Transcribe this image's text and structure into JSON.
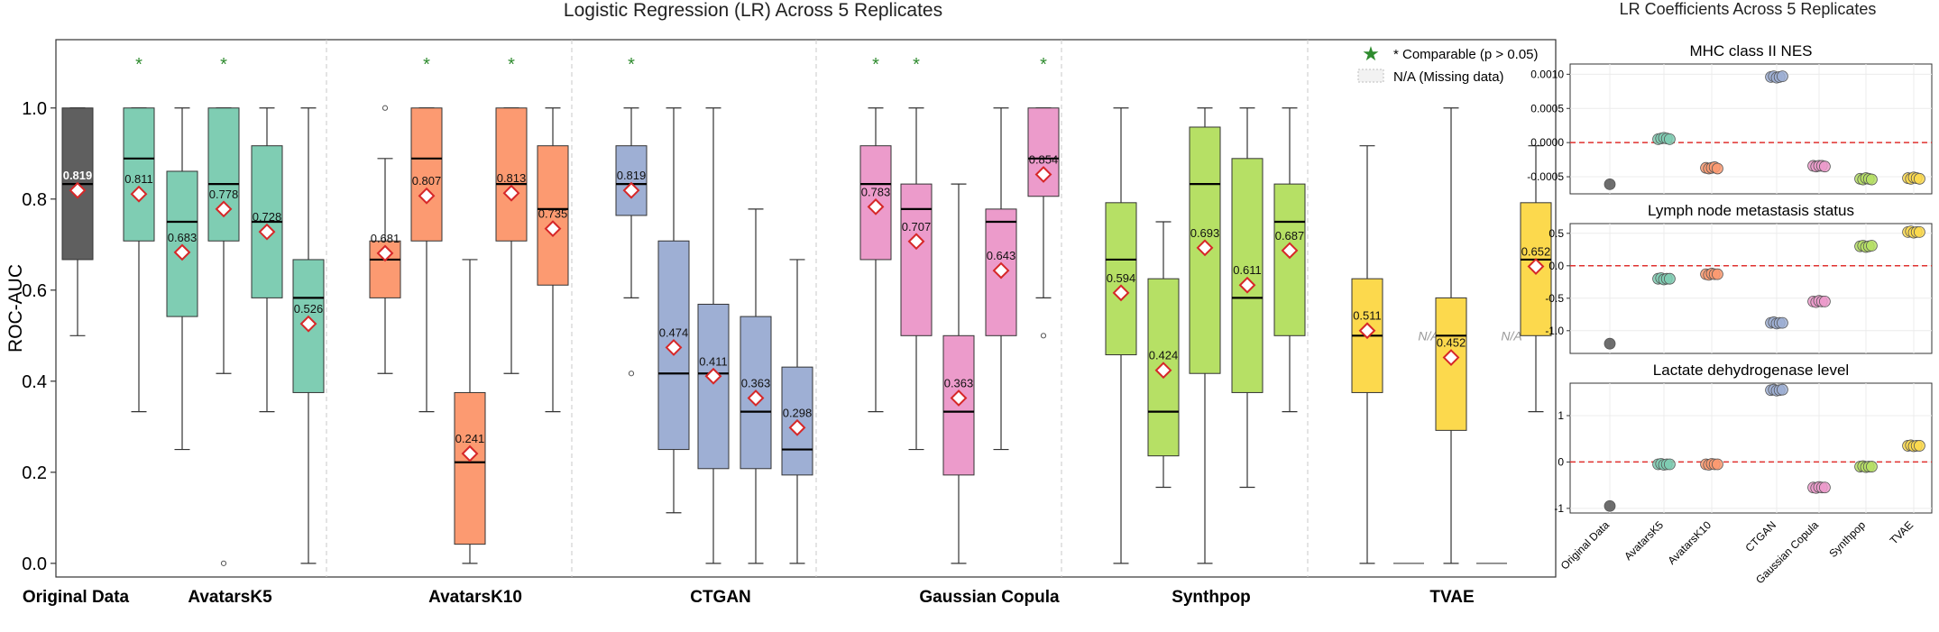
{
  "main_title": "Logistic Regression (LR) Across 5 Replicates",
  "side_title": "LR Coefficients Across 5 Replicates",
  "colors": {
    "original": "#5f5f5f",
    "AvatarsK5": "#7fcdb3",
    "AvatarsK10": "#fc9a71",
    "CTGAN": "#9eafd4",
    "Gaussian Copula": "#ec9bcb",
    "Synthpop": "#b6e065",
    "TVAE": "#fcd94d",
    "star": "#2e8b2e",
    "mean_marker": "#d62728"
  },
  "chart_data": [
    {
      "type": "box",
      "title": "Logistic Regression (LR) Across 5 Replicates",
      "ylabel": "ROC-AUC",
      "ylim": [
        -0.03,
        1.15
      ],
      "yticks": [
        0.0,
        0.2,
        0.4,
        0.6,
        0.8,
        1.0
      ],
      "group_labels": [
        "Original Data",
        "AvatarsK5",
        "AvatarsK10",
        "CTGAN",
        "Gaussian Copula",
        "Synthpop",
        "TVAE"
      ],
      "legend": {
        "position": "top-right",
        "entries": [
          "* Comparable (p > 0.05)",
          "N/A (Missing data)"
        ]
      },
      "na_label": "N/A",
      "boxes": [
        {
          "group": "Original Data",
          "min": 0.5,
          "q1": 0.667,
          "median": 0.833,
          "q3": 1.0,
          "max": 1.0,
          "mean": 0.819,
          "mean_label": "0.819",
          "star": false,
          "outliers": []
        },
        {
          "group": "AvatarsK5",
          "min": 0.333,
          "q1": 0.708,
          "median": 0.889,
          "q3": 1.0,
          "max": 1.0,
          "mean": 0.811,
          "mean_label": "0.811",
          "star": true,
          "outliers": []
        },
        {
          "group": "AvatarsK5",
          "min": 0.25,
          "q1": 0.542,
          "median": 0.75,
          "q3": 0.861,
          "max": 1.0,
          "mean": 0.683,
          "mean_label": "0.683",
          "star": false,
          "outliers": []
        },
        {
          "group": "AvatarsK5",
          "min": 0.417,
          "q1": 0.708,
          "median": 0.833,
          "q3": 1.0,
          "max": 1.0,
          "mean": 0.778,
          "mean_label": "0.778",
          "star": true,
          "outliers": [
            0.0
          ]
        },
        {
          "group": "AvatarsK5",
          "min": 0.333,
          "q1": 0.583,
          "median": 0.75,
          "q3": 0.917,
          "max": 1.0,
          "mean": 0.728,
          "mean_label": "0.728",
          "star": false,
          "outliers": []
        },
        {
          "group": "AvatarsK5",
          "min": 0.0,
          "q1": 0.375,
          "median": 0.583,
          "q3": 0.667,
          "max": 1.0,
          "mean": 0.526,
          "mean_label": "0.526",
          "star": false,
          "outliers": []
        },
        {
          "group": "AvatarsK10",
          "min": 0.417,
          "q1": 0.583,
          "median": 0.667,
          "q3": 0.708,
          "max": 0.889,
          "mean": 0.681,
          "mean_label": "0.681",
          "star": false,
          "outliers": [
            1.0
          ]
        },
        {
          "group": "AvatarsK10",
          "min": 0.333,
          "q1": 0.708,
          "median": 0.889,
          "q3": 1.0,
          "max": 1.0,
          "mean": 0.807,
          "mean_label": "0.807",
          "star": true,
          "outliers": []
        },
        {
          "group": "AvatarsK10",
          "min": 0.0,
          "q1": 0.042,
          "median": 0.222,
          "q3": 0.375,
          "max": 0.667,
          "mean": 0.241,
          "mean_label": "0.241",
          "star": false,
          "outliers": []
        },
        {
          "group": "AvatarsK10",
          "min": 0.417,
          "q1": 0.708,
          "median": 0.833,
          "q3": 1.0,
          "max": 1.0,
          "mean": 0.813,
          "mean_label": "0.813",
          "star": true,
          "outliers": []
        },
        {
          "group": "AvatarsK10",
          "min": 0.333,
          "q1": 0.611,
          "median": 0.778,
          "q3": 0.917,
          "max": 1.0,
          "mean": 0.735,
          "mean_label": "0.735",
          "star": false,
          "outliers": []
        },
        {
          "group": "CTGAN",
          "min": 0.583,
          "q1": 0.764,
          "median": 0.833,
          "q3": 0.917,
          "max": 1.0,
          "mean": 0.819,
          "mean_label": "0.819",
          "star": true,
          "outliers": [
            0.417
          ]
        },
        {
          "group": "CTGAN",
          "min": 0.111,
          "q1": 0.25,
          "median": 0.417,
          "q3": 0.708,
          "max": 1.0,
          "mean": 0.474,
          "mean_label": "0.474",
          "star": false,
          "outliers": []
        },
        {
          "group": "CTGAN",
          "min": 0.0,
          "q1": 0.208,
          "median": 0.417,
          "q3": 0.569,
          "max": 1.0,
          "mean": 0.411,
          "mean_label": "0.411",
          "star": false,
          "outliers": []
        },
        {
          "group": "CTGAN",
          "min": 0.0,
          "q1": 0.208,
          "median": 0.333,
          "q3": 0.542,
          "max": 0.778,
          "mean": 0.363,
          "mean_label": "0.363",
          "star": false,
          "outliers": []
        },
        {
          "group": "CTGAN",
          "min": 0.0,
          "q1": 0.194,
          "median": 0.25,
          "q3": 0.431,
          "max": 0.667,
          "mean": 0.298,
          "mean_label": "0.298",
          "star": false,
          "outliers": []
        },
        {
          "group": "Gaussian Copula",
          "min": 0.333,
          "q1": 0.667,
          "median": 0.833,
          "q3": 0.917,
          "max": 1.0,
          "mean": 0.783,
          "mean_label": "0.783",
          "star": true,
          "outliers": []
        },
        {
          "group": "Gaussian Copula",
          "min": 0.25,
          "q1": 0.5,
          "median": 0.778,
          "q3": 0.833,
          "max": 1.0,
          "mean": 0.707,
          "mean_label": "0.707",
          "star": true,
          "outliers": []
        },
        {
          "group": "Gaussian Copula",
          "min": 0.0,
          "q1": 0.194,
          "median": 0.333,
          "q3": 0.5,
          "max": 0.833,
          "mean": 0.363,
          "mean_label": "0.363",
          "star": false,
          "outliers": []
        },
        {
          "group": "Gaussian Copula",
          "min": 0.25,
          "q1": 0.5,
          "median": 0.75,
          "q3": 0.778,
          "max": 1.0,
          "mean": 0.643,
          "mean_label": "0.643",
          "star": false,
          "outliers": []
        },
        {
          "group": "Gaussian Copula",
          "min": 0.583,
          "q1": 0.806,
          "median": 0.889,
          "q3": 1.0,
          "max": 1.0,
          "mean": 0.854,
          "mean_label": "0.854",
          "star": true,
          "outliers": [
            0.5
          ]
        },
        {
          "group": "Synthpop",
          "min": 0.0,
          "q1": 0.458,
          "median": 0.667,
          "q3": 0.792,
          "max": 1.0,
          "mean": 0.594,
          "mean_label": "0.594",
          "star": false,
          "outliers": []
        },
        {
          "group": "Synthpop",
          "min": 0.167,
          "q1": 0.236,
          "median": 0.333,
          "q3": 0.625,
          "max": 0.75,
          "mean": 0.424,
          "mean_label": "0.424",
          "star": false,
          "outliers": []
        },
        {
          "group": "Synthpop",
          "min": 0.0,
          "q1": 0.417,
          "median": 0.833,
          "q3": 0.958,
          "max": 1.0,
          "mean": 0.693,
          "mean_label": "0.693",
          "star": false,
          "outliers": []
        },
        {
          "group": "Synthpop",
          "min": 0.167,
          "q1": 0.375,
          "median": 0.583,
          "q3": 0.889,
          "max": 1.0,
          "mean": 0.611,
          "mean_label": "0.611",
          "star": false,
          "outliers": []
        },
        {
          "group": "Synthpop",
          "min": 0.333,
          "q1": 0.5,
          "median": 0.75,
          "q3": 0.833,
          "max": 1.0,
          "mean": 0.687,
          "mean_label": "0.687",
          "star": false,
          "outliers": []
        },
        {
          "group": "TVAE",
          "min": 0.0,
          "q1": 0.375,
          "median": 0.5,
          "q3": 0.625,
          "max": 0.917,
          "mean": 0.511,
          "mean_label": "0.511",
          "star": false,
          "outliers": []
        },
        {
          "group": "TVAE",
          "missing": true
        },
        {
          "group": "TVAE",
          "min": 0.0,
          "q1": 0.292,
          "median": 0.5,
          "q3": 0.583,
          "max": 1.0,
          "mean": 0.452,
          "mean_label": "0.452",
          "star": false,
          "outliers": []
        },
        {
          "group": "TVAE",
          "missing": true
        },
        {
          "group": "TVAE",
          "min": 0.333,
          "q1": 0.5,
          "median": 0.667,
          "q3": 0.792,
          "max": 0.917,
          "mean": 0.652,
          "mean_label": "0.652",
          "star": false,
          "outliers": []
        }
      ]
    },
    {
      "type": "scatter",
      "title": "MHC class II NES",
      "categories": [
        "Original Data",
        "AvatarsK5",
        "AvatarsK10",
        "CTGAN",
        "Gaussian Copula",
        "Synthpop",
        "TVAE"
      ],
      "ylim": [
        -0.00075,
        0.00115
      ],
      "yticks": [
        -0.0005,
        0.0,
        0.0005,
        0.001
      ],
      "ytick_labels": [
        "-0.0005",
        "0.0000",
        "0.0005",
        "0.0010"
      ],
      "reference_line": 0,
      "values": [
        [
          -0.00061
        ],
        [
          5e-05,
          6e-05,
          7e-05,
          6e-05,
          5e-05
        ],
        [
          -0.00037,
          -0.00038,
          -0.00037,
          -0.00036,
          -0.00038
        ],
        [
          0.00096,
          0.00097,
          0.00095,
          0.00096,
          0.00097
        ],
        [
          -0.00034,
          -0.00035,
          -0.00034,
          -0.00034,
          -0.00035
        ],
        [
          -0.00053,
          -0.00054,
          -0.00052,
          -0.00053,
          -0.00054
        ],
        [
          -0.00052,
          -0.00053,
          -0.00051,
          -0.00052,
          -0.00053
        ]
      ]
    },
    {
      "type": "scatter",
      "title": "Lymph node metastasis status",
      "categories": [
        "Original Data",
        "AvatarsK5",
        "AvatarsK10",
        "CTGAN",
        "Gaussian Copula",
        "Synthpop",
        "TVAE"
      ],
      "ylim": [
        -1.35,
        0.65
      ],
      "yticks": [
        -1.0,
        -0.5,
        0.0,
        0.5
      ],
      "ytick_labels": [
        "-1.0",
        "-0.5",
        "0.0",
        "0.5"
      ],
      "reference_line": 0,
      "values": [
        [
          -1.2
        ],
        [
          -0.2,
          -0.19,
          -0.21,
          -0.2,
          -0.2
        ],
        [
          -0.13,
          -0.14,
          -0.12,
          -0.13,
          -0.13
        ],
        [
          -0.88,
          -0.87,
          -0.89,
          -0.88,
          -0.88
        ],
        [
          -0.55,
          -0.56,
          -0.54,
          -0.55,
          -0.55
        ],
        [
          0.3,
          0.31,
          0.29,
          0.3,
          0.31
        ],
        [
          0.52,
          0.53,
          0.51,
          0.52,
          0.52
        ]
      ]
    },
    {
      "type": "scatter",
      "title": "Lactate dehydrogenase level",
      "categories": [
        "Original Data",
        "AvatarsK5",
        "AvatarsK10",
        "CTGAN",
        "Gaussian Copula",
        "Synthpop",
        "TVAE"
      ],
      "ylim": [
        -1.1,
        1.7
      ],
      "yticks": [
        -1,
        0,
        1
      ],
      "ytick_labels": [
        "-1",
        "0",
        "1"
      ],
      "reference_line": 0,
      "values": [
        [
          -0.95
        ],
        [
          -0.05,
          -0.04,
          -0.06,
          -0.05,
          -0.05
        ],
        [
          -0.05,
          -0.06,
          -0.04,
          -0.05,
          -0.05
        ],
        [
          1.55,
          1.56,
          1.54,
          1.55,
          1.56
        ],
        [
          -0.55,
          -0.56,
          -0.54,
          -0.55,
          -0.55
        ],
        [
          -0.1,
          -0.09,
          -0.11,
          -0.1,
          -0.1
        ],
        [
          0.35,
          0.36,
          0.34,
          0.35,
          0.35
        ]
      ]
    }
  ]
}
